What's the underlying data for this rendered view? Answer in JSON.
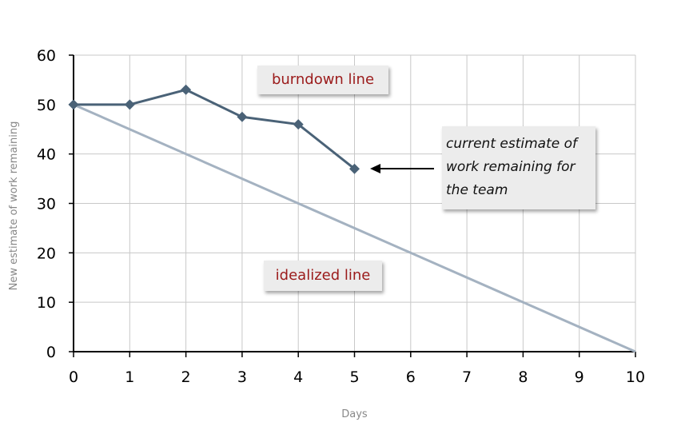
{
  "chart_data": {
    "type": "line",
    "x": [
      0,
      1,
      2,
      3,
      4,
      5,
      6,
      7,
      8,
      9,
      10
    ],
    "xlabel": "Days",
    "ylabel": "New estimate of work remaining",
    "xlim": [
      0,
      10
    ],
    "ylim": [
      0,
      60
    ],
    "x_ticks": [
      "0",
      "1",
      "2",
      "3",
      "4",
      "5",
      "6",
      "7",
      "8",
      "9",
      "10"
    ],
    "y_ticks": [
      "0",
      "10",
      "20",
      "30",
      "40",
      "50",
      "60"
    ],
    "grid": true,
    "series": [
      {
        "name": "burndown line",
        "x": [
          0,
          1,
          2,
          3,
          4,
          5
        ],
        "values": [
          50,
          50,
          53,
          47.5,
          46,
          37
        ],
        "color": "#4a6277",
        "marker": "diamond"
      },
      {
        "name": "idealized line",
        "x": [
          0,
          10
        ],
        "values": [
          50,
          0
        ],
        "color": "#a4b2c1"
      }
    ],
    "annotations": {
      "burndown_label": "burndown line",
      "ideal_label": "idealized line",
      "current_estimate": [
        "current estimate of",
        "work remaining for",
        "the team"
      ]
    }
  }
}
